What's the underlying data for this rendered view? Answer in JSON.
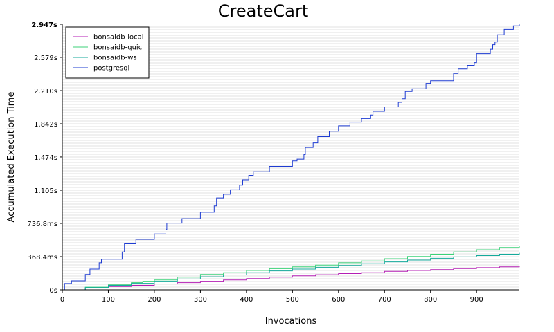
{
  "chart_data": {
    "type": "line",
    "title": "CreateCart",
    "xlabel": "Invocations",
    "ylabel": "Accumulated Execution Time",
    "xlim": [
      0,
      993
    ],
    "ylim": [
      0,
      2.947
    ],
    "x_ticks": [
      0,
      100,
      200,
      300,
      400,
      500,
      600,
      700,
      800,
      900
    ],
    "y_ticks": [
      {
        "value": 0,
        "label": "0s"
      },
      {
        "value": 0.3684,
        "label": "368.4ms"
      },
      {
        "value": 0.7368,
        "label": "736.8ms"
      },
      {
        "value": 1.105,
        "label": "1.105s"
      },
      {
        "value": 1.474,
        "label": "1.474s"
      },
      {
        "value": 1.842,
        "label": "1.842s"
      },
      {
        "value": 2.21,
        "label": "2.210s"
      },
      {
        "value": 2.579,
        "label": "2.579s"
      },
      {
        "value": 2.947,
        "label": "2.947s"
      }
    ],
    "grid": "horizontal minor lines",
    "legend_position": "top-left",
    "series": [
      {
        "name": "bonsaidb-local",
        "color": "#b41eb4",
        "points": [
          [
            0,
            0
          ],
          [
            50,
            0.02
          ],
          [
            100,
            0.037
          ],
          [
            150,
            0.05
          ],
          [
            200,
            0.065
          ],
          [
            250,
            0.08
          ],
          [
            300,
            0.095
          ],
          [
            350,
            0.11
          ],
          [
            400,
            0.125
          ],
          [
            450,
            0.14
          ],
          [
            500,
            0.155
          ],
          [
            550,
            0.168
          ],
          [
            600,
            0.18
          ],
          [
            650,
            0.19
          ],
          [
            700,
            0.205
          ],
          [
            750,
            0.215
          ],
          [
            800,
            0.225
          ],
          [
            850,
            0.236
          ],
          [
            900,
            0.246
          ],
          [
            950,
            0.255
          ],
          [
            993,
            0.26
          ]
        ]
      },
      {
        "name": "bonsaidb-quic",
        "color": "#3cd278",
        "points": [
          [
            0,
            0
          ],
          [
            50,
            0.03
          ],
          [
            100,
            0.056
          ],
          [
            150,
            0.08
          ],
          [
            175,
            0.095
          ],
          [
            200,
            0.11
          ],
          [
            250,
            0.14
          ],
          [
            300,
            0.17
          ],
          [
            350,
            0.19
          ],
          [
            400,
            0.215
          ],
          [
            450,
            0.235
          ],
          [
            500,
            0.255
          ],
          [
            550,
            0.275
          ],
          [
            600,
            0.3
          ],
          [
            650,
            0.32
          ],
          [
            700,
            0.345
          ],
          [
            750,
            0.37
          ],
          [
            800,
            0.395
          ],
          [
            850,
            0.42
          ],
          [
            900,
            0.445
          ],
          [
            950,
            0.47
          ],
          [
            993,
            0.49
          ]
        ]
      },
      {
        "name": "bonsaidb-ws",
        "color": "#14aa9b",
        "points": [
          [
            0,
            0
          ],
          [
            50,
            0.025
          ],
          [
            100,
            0.05
          ],
          [
            150,
            0.072
          ],
          [
            200,
            0.095
          ],
          [
            250,
            0.12
          ],
          [
            300,
            0.145
          ],
          [
            350,
            0.165
          ],
          [
            400,
            0.19
          ],
          [
            450,
            0.21
          ],
          [
            500,
            0.23
          ],
          [
            550,
            0.25
          ],
          [
            600,
            0.27
          ],
          [
            650,
            0.29
          ],
          [
            700,
            0.31
          ],
          [
            750,
            0.33
          ],
          [
            800,
            0.35
          ],
          [
            850,
            0.365
          ],
          [
            900,
            0.38
          ],
          [
            950,
            0.395
          ],
          [
            993,
            0.41
          ]
        ]
      },
      {
        "name": "postgresql",
        "color": "#1e3cd2",
        "points": [
          [
            0,
            0
          ],
          [
            5,
            0.07
          ],
          [
            20,
            0.1
          ],
          [
            50,
            0.17
          ],
          [
            60,
            0.23
          ],
          [
            80,
            0.3
          ],
          [
            85,
            0.34
          ],
          [
            130,
            0.42
          ],
          [
            135,
            0.51
          ],
          [
            160,
            0.56
          ],
          [
            200,
            0.62
          ],
          [
            225,
            0.67
          ],
          [
            227,
            0.74
          ],
          [
            260,
            0.79
          ],
          [
            300,
            0.86
          ],
          [
            330,
            0.93
          ],
          [
            335,
            1.02
          ],
          [
            350,
            1.06
          ],
          [
            365,
            1.11
          ],
          [
            385,
            1.16
          ],
          [
            392,
            1.22
          ],
          [
            405,
            1.27
          ],
          [
            415,
            1.31
          ],
          [
            450,
            1.37
          ],
          [
            500,
            1.43
          ],
          [
            510,
            1.45
          ],
          [
            525,
            1.5
          ],
          [
            528,
            1.58
          ],
          [
            545,
            1.63
          ],
          [
            555,
            1.7
          ],
          [
            580,
            1.76
          ],
          [
            600,
            1.82
          ],
          [
            625,
            1.86
          ],
          [
            650,
            1.9
          ],
          [
            670,
            1.94
          ],
          [
            675,
            1.98
          ],
          [
            700,
            2.03
          ],
          [
            730,
            2.08
          ],
          [
            738,
            2.12
          ],
          [
            745,
            2.2
          ],
          [
            760,
            2.23
          ],
          [
            790,
            2.29
          ],
          [
            800,
            2.32
          ],
          [
            850,
            2.4
          ],
          [
            860,
            2.45
          ],
          [
            880,
            2.49
          ],
          [
            895,
            2.52
          ],
          [
            900,
            2.62
          ],
          [
            930,
            2.67
          ],
          [
            935,
            2.72
          ],
          [
            940,
            2.75
          ],
          [
            945,
            2.83
          ],
          [
            960,
            2.89
          ],
          [
            980,
            2.93
          ],
          [
            993,
            2.945
          ]
        ]
      }
    ]
  }
}
